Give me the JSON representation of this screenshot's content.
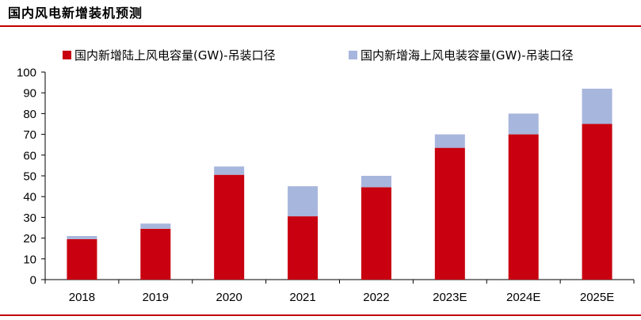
{
  "page": {
    "title": "国内风电新增装机预测"
  },
  "colors": {
    "onshore": "#C8000F",
    "offshore": "#A7B6DC",
    "axis": "#000000",
    "rule": "#C00000"
  },
  "chart_data": {
    "type": "bar",
    "stacked": true,
    "categories": [
      "2018",
      "2019",
      "2020",
      "2021",
      "2022",
      "2023E",
      "2024E",
      "2025E"
    ],
    "series": [
      {
        "name": "国内新增陆上风电容量(GW)-吊装口径",
        "values": [
          19.5,
          24.5,
          50.5,
          30.5,
          44.5,
          63.5,
          70,
          75
        ]
      },
      {
        "name": "国内新增海上风电装容量(GW)-吊装口径",
        "values": [
          1.5,
          2.5,
          4,
          14.5,
          5.5,
          6.5,
          10,
          17
        ]
      }
    ],
    "ylim": [
      0,
      100
    ],
    "yticks": [
      0,
      10,
      20,
      30,
      40,
      50,
      60,
      70,
      80,
      90,
      100
    ],
    "grid": false,
    "legend_position": "top"
  }
}
